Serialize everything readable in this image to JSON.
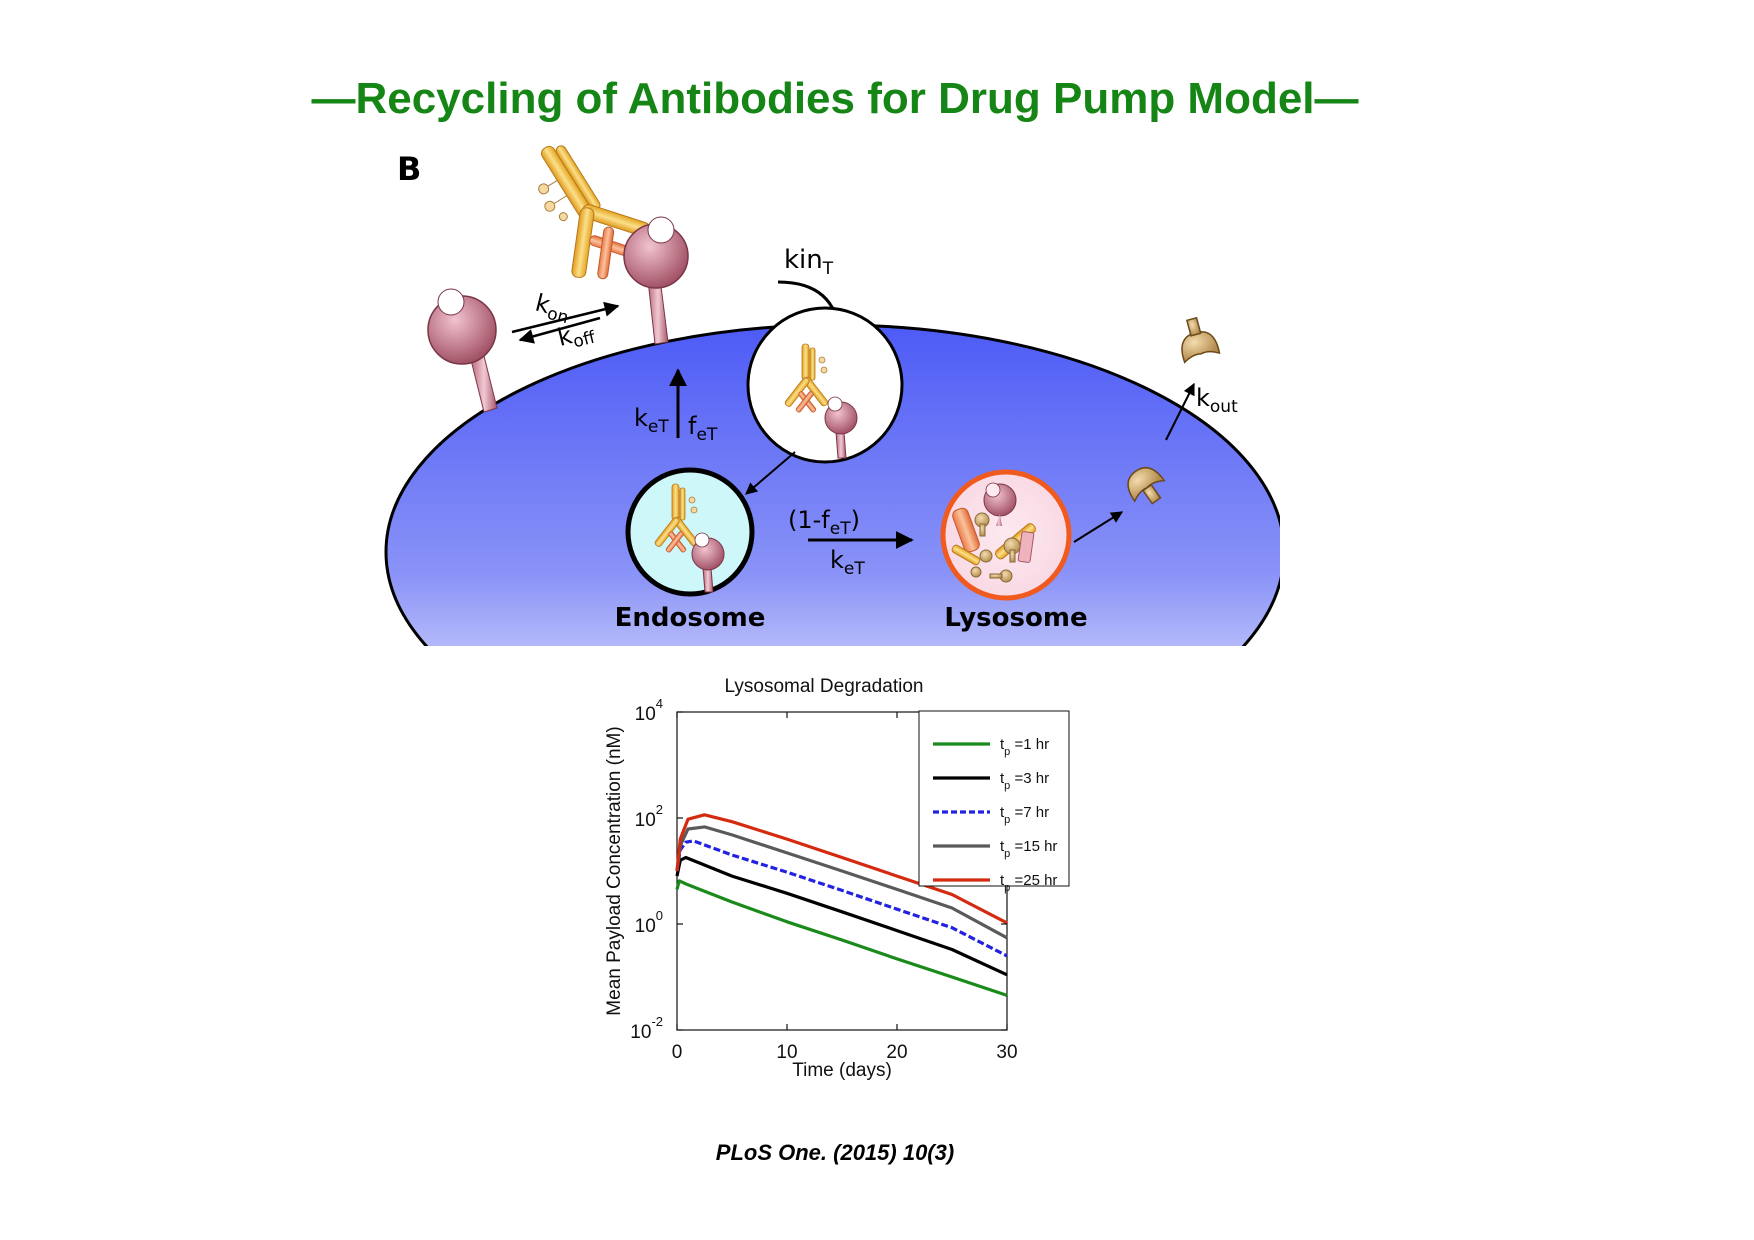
{
  "slide": {
    "title": "—Recycling of Antibodies for Drug Pump Model—",
    "citation": "PLoS One. (2015) 10(3)"
  },
  "diagram": {
    "panel_label": "B",
    "rates": {
      "kin": "kin",
      "kin_sub": "T",
      "kon": "k",
      "kon_sub": "on",
      "koff": "k",
      "koff_sub": "off",
      "ke": "k",
      "ke_sub": "eT",
      "fe": "f",
      "fe_sub": "eT",
      "deg_open": "(1-f",
      "deg_sub": "eT",
      "deg_close": ")",
      "ke2": "k",
      "ke2_sub": "eT",
      "kout": "k",
      "kout_sub": "out"
    },
    "labels": {
      "endosome": "Endosome",
      "lysosome": "Lysosome"
    },
    "colors": {
      "cell_top": "#5562f5",
      "cell_bottom": "#ffffff",
      "endosome_fill": "#cdf7f8",
      "lysosome_ring": "#f05a1e"
    }
  },
  "chart_data": {
    "type": "line",
    "title": "Lysosomal Degradation",
    "xlabel": "Time (days)",
    "ylabel": "Mean Payload Concentration (nM)",
    "xlim": [
      0,
      30
    ],
    "ylim": [
      0.01,
      10000
    ],
    "yscale": "log",
    "xticks": [
      "0",
      "10",
      "20",
      "30"
    ],
    "yticks": [
      {
        "base": "10",
        "exp": "-2"
      },
      {
        "base": "10",
        "exp": "0"
      },
      {
        "base": "10",
        "exp": "2"
      },
      {
        "base": "10",
        "exp": "4"
      }
    ],
    "grid": false,
    "legend": "top-right",
    "series": [
      {
        "name_t": "t",
        "name_sub": "p",
        "name_rest": "=1 hr",
        "color": "#1a8a1a",
        "style": "solid",
        "x": [
          0,
          0.2,
          1,
          5,
          10,
          15,
          20,
          25,
          30
        ],
        "y": [
          4.5,
          6.5,
          5.5,
          2.6,
          1.1,
          0.5,
          0.22,
          0.1,
          0.045
        ]
      },
      {
        "name_t": "t",
        "name_sub": "p",
        "name_rest": "=3 hr",
        "color": "#000000",
        "style": "solid",
        "x": [
          0,
          0.3,
          0.8,
          5,
          10,
          15,
          20,
          25,
          30
        ],
        "y": [
          8,
          16,
          18,
          8,
          3.8,
          1.7,
          0.75,
          0.33,
          0.11
        ]
      },
      {
        "name_t": "t",
        "name_sub": "p",
        "name_rest": "=7 hr",
        "color": "#2222e0",
        "style": "dashed",
        "x": [
          0,
          0.3,
          0.8,
          1.5,
          5,
          10,
          15,
          20,
          25,
          30
        ],
        "y": [
          10,
          25,
          35,
          37,
          20,
          9.5,
          4.3,
          1.9,
          0.85,
          0.25
        ]
      },
      {
        "name_t": "t",
        "name_sub": "p",
        "name_rest": "=15 hr",
        "color": "#5a5a5a",
        "style": "solid",
        "x": [
          0,
          0.3,
          1,
          2.5,
          5,
          10,
          15,
          20,
          25,
          30
        ],
        "y": [
          10,
          30,
          62,
          68,
          48,
          22,
          10,
          4.5,
          2,
          0.55
        ]
      },
      {
        "name_t": "t",
        "name_sub": "p",
        "name_rest": "=25 hr",
        "color": "#d42a10",
        "style": "solid",
        "x": [
          0,
          0.3,
          1,
          2.5,
          5,
          10,
          15,
          20,
          25,
          30
        ],
        "y": [
          10,
          40,
          95,
          115,
          85,
          40,
          18,
          8,
          3.6,
          1.05
        ]
      }
    ]
  }
}
